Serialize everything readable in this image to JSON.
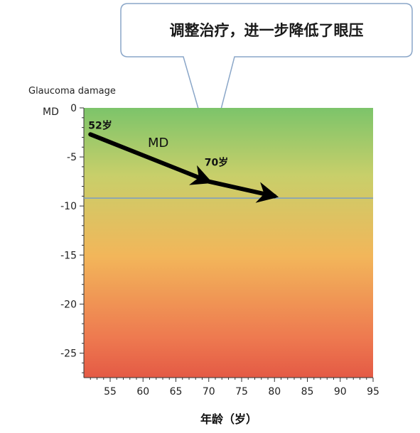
{
  "chart_data": {
    "type": "line",
    "title": "",
    "callout": "调整治疗，进一步降低了眼压",
    "ylabel_top": "Glaucoma damage",
    "ylabel_unit": "MD",
    "xlabel": "年龄（岁）",
    "xlim": [
      51,
      95
    ],
    "ylim": [
      -27.5,
      0
    ],
    "x_ticks": [
      55,
      60,
      65,
      70,
      75,
      80,
      85,
      90,
      95
    ],
    "x_tick_labels": [
      "55",
      "60",
      "65",
      "70",
      "75",
      "80",
      "85",
      "90",
      "95"
    ],
    "y_ticks": [
      0,
      -5,
      -10,
      -15,
      -20,
      -25
    ],
    "y_tick_labels": [
      "0",
      "-5",
      "-10",
      "-15",
      "-20",
      "-25"
    ],
    "reference_line_y": -9.2,
    "series": [
      {
        "name": "MD",
        "x": [
          52,
          70,
          80
        ],
        "y": [
          -2.7,
          -7.5,
          -9.0
        ]
      }
    ],
    "annotations": [
      {
        "text": "52岁",
        "x": 52,
        "y": -2.7
      },
      {
        "text": "70岁",
        "x": 70,
        "y": -7.5
      }
    ],
    "background_gradient": [
      "#7cc46a",
      "#c8cf6a",
      "#f2b65a",
      "#ee7a50",
      "#e45a45"
    ],
    "colors": {
      "reference_line": "#7a9cc4",
      "trend_arrow": "#000000",
      "callout_border": "#8aa6c8",
      "callout_fill": "#ffffff"
    },
    "grid": false
  }
}
